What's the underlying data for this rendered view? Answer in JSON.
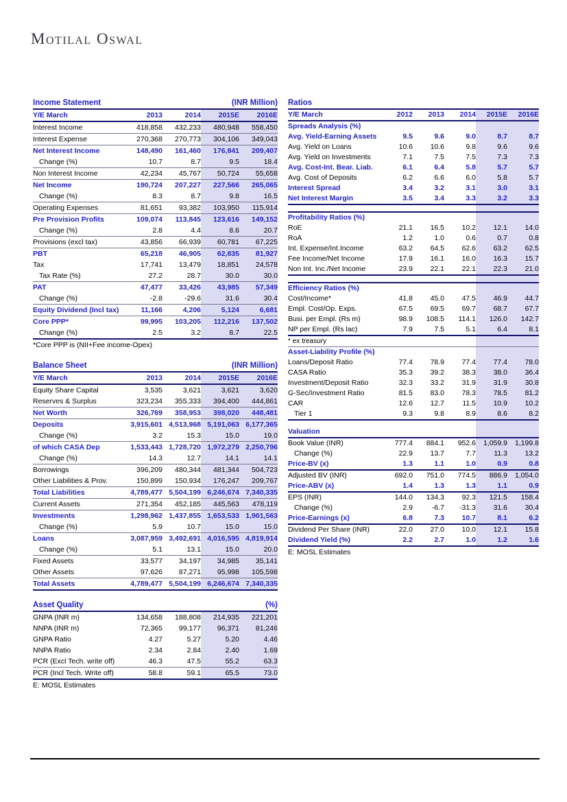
{
  "logo": {
    "text": "Motilal Oswal"
  },
  "income_statement": {
    "title": "Income Statement",
    "unit": "(INR Million)",
    "col_header": "Y/E March",
    "years": [
      "2013",
      "2014",
      "2015E",
      "2016E"
    ],
    "rows": [
      {
        "label": "Interest Income",
        "values": [
          "418,858",
          "432,233",
          "480,948",
          "558,450"
        ],
        "border": "sep"
      },
      {
        "label": "Interest Expense",
        "values": [
          "270,368",
          "270,773",
          "304,106",
          "349,043"
        ],
        "border": "sep"
      },
      {
        "label": "Net Interest Income",
        "values": [
          "148,490",
          "161,460",
          "176,841",
          "209,407"
        ],
        "bold": true
      },
      {
        "label": "Change (%)",
        "values": [
          "10.7",
          "8.7",
          "9.5",
          "18.4"
        ],
        "indent": true,
        "border": "sep"
      },
      {
        "label": "Non Interest Income",
        "values": [
          "42,234",
          "45,767",
          "50,724",
          "55,658"
        ],
        "border": "sep"
      },
      {
        "label": "Net Income",
        "values": [
          "190,724",
          "207,227",
          "227,566",
          "265,065"
        ],
        "bold": true
      },
      {
        "label": "Change (%)",
        "values": [
          "8.3",
          "8.7",
          "9.8",
          "16.5"
        ],
        "indent": true,
        "border": "sep"
      },
      {
        "label": "Operating Expenses",
        "values": [
          "81,651",
          "93,382",
          "103,950",
          "115,914"
        ],
        "border": "sep"
      },
      {
        "label": "Pre Provision Profits",
        "values": [
          "109,074",
          "113,845",
          "123,616",
          "149,152"
        ],
        "bold": true
      },
      {
        "label": "Change (%)",
        "values": [
          "2.8",
          "4.4",
          "8.6",
          "20.7"
        ],
        "indent": true,
        "border": "sep"
      },
      {
        "label": "Provisions (excl tax)",
        "values": [
          "43,856",
          "66,939",
          "60,781",
          "67,225"
        ],
        "border": "sep"
      },
      {
        "label": "PBT",
        "values": [
          "65,218",
          "46,905",
          "62,835",
          "81,927"
        ],
        "bold": true
      },
      {
        "label": "Tax",
        "values": [
          "17,741",
          "13,479",
          "18,851",
          "24,578"
        ]
      },
      {
        "label": "Tax Rate (%)",
        "values": [
          "27.2",
          "28.7",
          "30.0",
          "30.0"
        ],
        "indent": true,
        "border": "sep"
      },
      {
        "label": "PAT",
        "values": [
          "47,477",
          "33,426",
          "43,985",
          "57,349"
        ],
        "bold": true
      },
      {
        "label": "Change (%)",
        "values": [
          "-2.8",
          "-29.6",
          "31.6",
          "30.4"
        ],
        "indent": true,
        "border": "sep"
      },
      {
        "label": "Equity Dividend (Incl tax)",
        "values": [
          "11,166",
          "4,206",
          "5,124",
          "6,681"
        ],
        "bold": true,
        "border": "sep"
      },
      {
        "label": "Core PPP*",
        "values": [
          "99,995",
          "103,205",
          "112,216",
          "137,502"
        ],
        "bold": true
      },
      {
        "label": "Change (%)",
        "values": [
          "2.5",
          "3.2",
          "8.7",
          "22.5"
        ],
        "indent": true,
        "border": "heavy"
      }
    ],
    "footnote": "*Core PPP is (NII+Fee income-Opex)"
  },
  "balance_sheet": {
    "title": "Balance Sheet",
    "unit": "(INR Million)",
    "col_header": "Y/E March",
    "years": [
      "2013",
      "2014",
      "2015E",
      "2016E"
    ],
    "rows": [
      {
        "label": "Equity Share Capital",
        "values": [
          "3,535",
          "3,621",
          "3,621",
          "3,620"
        ]
      },
      {
        "label": "Reserves & Surplus",
        "values": [
          "323,234",
          "355,333",
          "394,400",
          "444,861"
        ],
        "border": "sep"
      },
      {
        "label": "Net Worth",
        "values": [
          "326,769",
          "358,953",
          "398,020",
          "448,481"
        ],
        "bold": true,
        "border": "sep"
      },
      {
        "label": "Deposits",
        "values": [
          "3,915,601",
          "4,513,968",
          "5,191,063",
          "6,177,365"
        ],
        "bold": true
      },
      {
        "label": "Change (%)",
        "values": [
          "3.2",
          "15.3",
          "15.0",
          "19.0"
        ],
        "indent": true,
        "border": "sep"
      },
      {
        "label": "of which CASA Dep",
        "values": [
          "1,533,443",
          "1,728,720",
          "1,972,279",
          "2,250,796"
        ],
        "bold": true
      },
      {
        "label": "Change (%)",
        "values": [
          "14.3",
          "12.7",
          "14.1",
          "14.1"
        ],
        "indent": true,
        "border": "sep"
      },
      {
        "label": "Borrowings",
        "values": [
          "396,209",
          "480,344",
          "481,344",
          "504,723"
        ]
      },
      {
        "label": "Other Liabilities & Prov.",
        "values": [
          "150,899",
          "150,934",
          "176,247",
          "209,767"
        ],
        "border": "sep"
      },
      {
        "label": "Total Liabilities",
        "values": [
          "4,789,477",
          "5,504,199",
          "6,246,674",
          "7,340,335"
        ],
        "bold": true,
        "border": "sep"
      },
      {
        "label": "Current Assets",
        "values": [
          "271,354",
          "452,185",
          "445,563",
          "478,119"
        ],
        "border": "sep"
      },
      {
        "label": "Investments",
        "values": [
          "1,298,962",
          "1,437,855",
          "1,653,533",
          "1,901,563"
        ],
        "bold": true
      },
      {
        "label": "Change (%)",
        "values": [
          "5.9",
          "10.7",
          "15.0",
          "15.0"
        ],
        "indent": true,
        "border": "sep"
      },
      {
        "label": "Loans",
        "values": [
          "3,087,959",
          "3,492,691",
          "4,016,595",
          "4,819,914"
        ],
        "bold": true
      },
      {
        "label": "Change (%)",
        "values": [
          "5.1",
          "13.1",
          "15.0",
          "20.0"
        ],
        "indent": true,
        "border": "sep"
      },
      {
        "label": "Fixed Assets",
        "values": [
          "33,577",
          "34,197",
          "34,985",
          "35,141"
        ]
      },
      {
        "label": "Other Assets",
        "values": [
          "97,626",
          "87,271",
          "95,998",
          "105,598"
        ],
        "border": "sep"
      },
      {
        "label": "Total Assets",
        "values": [
          "4,789,477",
          "5,504,199",
          "6,246,674",
          "7,340,335"
        ],
        "bold": true,
        "border": "heavy"
      }
    ]
  },
  "asset_quality": {
    "title": "Asset Quality",
    "unit": "(%)",
    "cols": 4,
    "rows": [
      {
        "label": "GNPA (INR m)",
        "values": [
          "134,658",
          "188,808",
          "214,935",
          "221,201"
        ]
      },
      {
        "label": "NNPA (INR m)",
        "values": [
          "72,365",
          "99,177",
          "96,371",
          "81,246"
        ]
      },
      {
        "label": "GNPA Ratio",
        "values": [
          "4.27",
          "5.27",
          "5.20",
          "4.46"
        ]
      },
      {
        "label": "NNPA Ratio",
        "values": [
          "2.34",
          "2.84",
          "2.40",
          "1.69"
        ]
      },
      {
        "label": "PCR (Excl Tech. write off)",
        "values": [
          "46.3",
          "47.5",
          "55.2",
          "63.3"
        ],
        "border": "sep"
      },
      {
        "label": "PCR (Incl Tech. Write off)",
        "values": [
          "58.8",
          "59.1",
          "65.5",
          "73.0"
        ],
        "border": "heavy"
      }
    ],
    "footnote": "E: MOSL Estimates"
  },
  "ratios": {
    "title": "Ratios",
    "unit": "",
    "col_header": "Y/E March",
    "years": [
      "2012",
      "2013",
      "2014",
      "2015E",
      "2016E"
    ],
    "rows": [
      {
        "type": "section",
        "label": "Spreads Analysis (%)"
      },
      {
        "label": "Avg. Yield-Earning Assets",
        "values": [
          "9.5",
          "9.6",
          "9.0",
          "8.7",
          "8.7"
        ],
        "bold": true
      },
      {
        "label": "Avg. Yield on Loans",
        "values": [
          "10.6",
          "10.6",
          "9.8",
          "9.6",
          "9.6"
        ]
      },
      {
        "label": "Avg. Yield on Investments",
        "values": [
          "7.1",
          "7.5",
          "7.5",
          "7.3",
          "7.3"
        ]
      },
      {
        "label": "Avg. Cost-Int. Bear. Liab.",
        "values": [
          "6.1",
          "6.4",
          "5.8",
          "5.7",
          "5.7"
        ],
        "bold": true
      },
      {
        "label": "Avg. Cost of Deposits",
        "values": [
          "6.2",
          "6.6",
          "6.0",
          "5.8",
          "5.7"
        ]
      },
      {
        "label": "Interest Spread",
        "values": [
          "3.4",
          "3.2",
          "3.1",
          "3.0",
          "3.1"
        ],
        "bold": true
      },
      {
        "label": "Net Interest Margin",
        "values": [
          "3.5",
          "3.4",
          "3.3",
          "3.2",
          "3.3"
        ],
        "bold": true,
        "border": "heavy"
      },
      {
        "type": "gap",
        "border": "heavy"
      },
      {
        "type": "section",
        "label": "Profitability Ratios (%)"
      },
      {
        "label": "RoE",
        "values": [
          "21.1",
          "16.5",
          "10.2",
          "12.1",
          "14.0"
        ]
      },
      {
        "label": "RoA",
        "values": [
          "1.2",
          "1.0",
          "0.6",
          "0.7",
          "0.8"
        ]
      },
      {
        "label": "Int. Expense/Int.Income",
        "values": [
          "63.2",
          "64.5",
          "62.6",
          "63.2",
          "62.5"
        ]
      },
      {
        "label": "Fee Income/Net Income",
        "values": [
          "17.9",
          "16.1",
          "16.0",
          "16.3",
          "15.7"
        ]
      },
      {
        "label": "Non Int. Inc./Net Income",
        "values": [
          "23.9",
          "22.1",
          "22.1",
          "22.3",
          "21.0"
        ],
        "border": "heavy"
      },
      {
        "type": "gap",
        "border": "heavy"
      },
      {
        "type": "section",
        "label": "Efficiency Ratios (%)"
      },
      {
        "label": "Cost/Income*",
        "values": [
          "41.8",
          "45.0",
          "47.5",
          "46.9",
          "44.7"
        ]
      },
      {
        "label": "Empl. Cost/Op. Exps.",
        "values": [
          "67.5",
          "69.5",
          "69.7",
          "68.7",
          "67.7"
        ]
      },
      {
        "label": "Busi. per Empl. (Rs m)",
        "values": [
          "98.9",
          "108.5",
          "114.1",
          "126.0",
          "142.7"
        ]
      },
      {
        "label": "NP per Empl. (Rs lac)",
        "values": [
          "7.9",
          "7.5",
          "5.1",
          "6.4",
          "8.1"
        ],
        "border": "heavy"
      },
      {
        "type": "note",
        "label": "* ex treasury",
        "border": "sep"
      },
      {
        "type": "section",
        "label": "Asset-Liability Profile (%)"
      },
      {
        "label": "Loans/Deposit Ratio",
        "values": [
          "77.4",
          "78.9",
          "77.4",
          "77.4",
          "78.0"
        ]
      },
      {
        "label": "CASA Ratio",
        "values": [
          "35.3",
          "39.2",
          "38.3",
          "38.0",
          "36.4"
        ]
      },
      {
        "label": "Investment/Deposit Ratio",
        "values": [
          "32.3",
          "33.2",
          "31.9",
          "31.9",
          "30.8"
        ]
      },
      {
        "label": "G-Sec/Investment Ratio",
        "values": [
          "81.5",
          "83.0",
          "78.3",
          "78.5",
          "81.2"
        ]
      },
      {
        "label": "CAR",
        "values": [
          "12.6",
          "12.7",
          "11.5",
          "10.9",
          "10.2"
        ]
      },
      {
        "label": "Tier 1",
        "values": [
          "9.3",
          "9.8",
          "8.9",
          "8.6",
          "8.2"
        ],
        "indent": true,
        "border": "heavy"
      },
      {
        "type": "gap"
      },
      {
        "type": "section",
        "label": "Valuation",
        "border": "heavy"
      },
      {
        "label": "Book Value (INR)",
        "values": [
          "777.4",
          "884.1",
          "952.6",
          "1,059.9",
          "1,199.8"
        ]
      },
      {
        "label": "Change (%)",
        "values": [
          "22.9",
          "13.7",
          "7.7",
          "11.3",
          "13.2"
        ],
        "indent": true
      },
      {
        "label": "Price-BV (x)",
        "values": [
          "1.3",
          "1.1",
          "1.0",
          "0.9",
          "0.8"
        ],
        "bold": true,
        "border": "heavy"
      },
      {
        "label": "Adjusted BV (INR)",
        "values": [
          "692.0",
          "751.0",
          "774.5",
          "886.9",
          "1,054.0"
        ]
      },
      {
        "label": "Price-ABV (x)",
        "values": [
          "1.4",
          "1.3",
          "1.3",
          "1.1",
          "0.9"
        ],
        "bold": true,
        "border": "heavy"
      },
      {
        "label": "EPS (INR)",
        "values": [
          "144.0",
          "134.3",
          "92.3",
          "121.5",
          "158.4"
        ]
      },
      {
        "label": "Change (%)",
        "values": [
          "2.9",
          "-6.7",
          "-31.3",
          "31.6",
          "30.4"
        ],
        "indent": true
      },
      {
        "label": "Price-Earnings (x)",
        "values": [
          "6.8",
          "7.3",
          "10.7",
          "8.1",
          "6.2"
        ],
        "bold": true,
        "border": "heavy"
      },
      {
        "label": "Dividend Per Share (INR)",
        "values": [
          "22.0",
          "27.0",
          "10.0",
          "12.1",
          "15.8"
        ]
      },
      {
        "label": "Dividend Yield (%)",
        "values": [
          "2.2",
          "2.7",
          "1.0",
          "1.2",
          "1.6"
        ],
        "bold": true,
        "border": "heavy"
      }
    ],
    "footnote": "E: MOSL Estimates"
  },
  "colors": {
    "accent_blue": "#2323c1",
    "heavy_rule": "#14146e",
    "estimate_shade": "#dbdbf4"
  }
}
